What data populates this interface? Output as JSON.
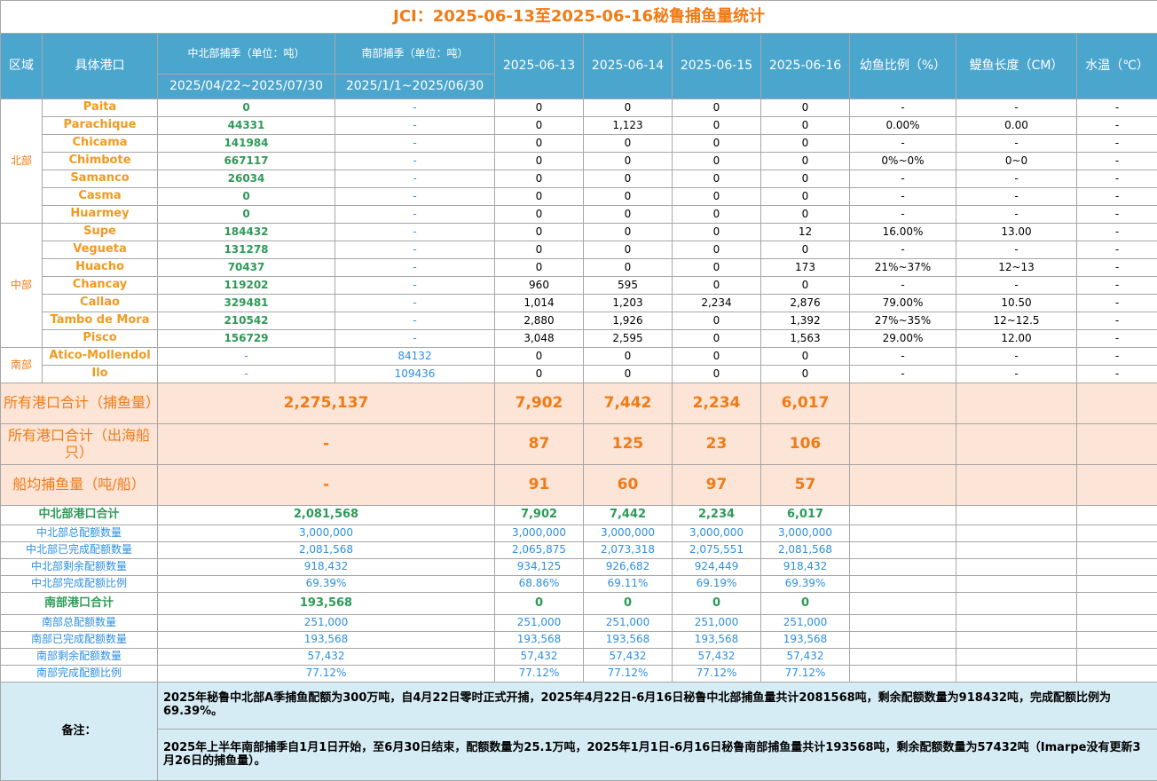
{
  "title": "JCI：2025-06-13至2025-06-16秘鲁捕鱼量统计",
  "header": {
    "region": "区域",
    "port": "具体港口",
    "north_season": "中北部捕季（单位：吨）",
    "north_period": "2025/04/22~2025/07/30",
    "south_season": "南部捕季（单位：吨）",
    "south_period": "2025/1/1~2025/06/30",
    "dates": [
      "2025-06-13",
      "2025-06-14",
      "2025-06-15",
      "2025-06-16"
    ],
    "juvenile": "幼鱼比例（%）",
    "length": "鳀鱼长度（CM）",
    "temp": "水温（℃）"
  },
  "regions": [
    {
      "name": "北部",
      "ports": [
        {
          "name": "Paita",
          "north": "0",
          "south": "-",
          "daily": [
            "0",
            "0",
            "0",
            "0"
          ],
          "juvenile": "-",
          "length": "-",
          "temp": "-"
        },
        {
          "name": "Parachique",
          "north": "44331",
          "south": "-",
          "daily": [
            "0",
            "1,123",
            "0",
            "0"
          ],
          "juvenile": "0.00%",
          "length": "0.00",
          "temp": "-"
        },
        {
          "name": "Chicama",
          "north": "141984",
          "south": "-",
          "daily": [
            "0",
            "0",
            "0",
            "0"
          ],
          "juvenile": "-",
          "length": "-",
          "temp": "-"
        },
        {
          "name": "Chimbote",
          "north": "667117",
          "south": "-",
          "daily": [
            "0",
            "0",
            "0",
            "0"
          ],
          "juvenile": "0%~0%",
          "length": "0~0",
          "temp": "-"
        },
        {
          "name": "Samanco",
          "north": "26034",
          "south": "-",
          "daily": [
            "0",
            "0",
            "0",
            "0"
          ],
          "juvenile": "-",
          "length": "-",
          "temp": "-"
        },
        {
          "name": "Casma",
          "north": "0",
          "south": "-",
          "daily": [
            "0",
            "0",
            "0",
            "0"
          ],
          "juvenile": "-",
          "length": "-",
          "temp": "-"
        },
        {
          "name": "Huarmey",
          "north": "0",
          "south": "-",
          "daily": [
            "0",
            "0",
            "0",
            "0"
          ],
          "juvenile": "-",
          "length": "-",
          "temp": "-"
        }
      ]
    },
    {
      "name": "中部",
      "ports": [
        {
          "name": "Supe",
          "north": "184432",
          "south": "-",
          "daily": [
            "0",
            "0",
            "0",
            "12"
          ],
          "juvenile": "16.00%",
          "length": "13.00",
          "temp": "-"
        },
        {
          "name": "Vegueta",
          "north": "131278",
          "south": "-",
          "daily": [
            "0",
            "0",
            "0",
            "0"
          ],
          "juvenile": "-",
          "length": "-",
          "temp": "-"
        },
        {
          "name": "Huacho",
          "north": "70437",
          "south": "-",
          "daily": [
            "0",
            "0",
            "0",
            "173"
          ],
          "juvenile": "21%~37%",
          "length": "12~13",
          "temp": "-"
        },
        {
          "name": "Chancay",
          "north": "119202",
          "south": "-",
          "daily": [
            "960",
            "595",
            "0",
            "0"
          ],
          "juvenile": "-",
          "length": "-",
          "temp": "-"
        },
        {
          "name": "Callao",
          "north": "329481",
          "south": "-",
          "daily": [
            "1,014",
            "1,203",
            "2,234",
            "2,876"
          ],
          "juvenile": "79.00%",
          "length": "10.50",
          "temp": "-"
        },
        {
          "name": "Tambo de Mora",
          "north": "210542",
          "south": "-",
          "daily": [
            "2,880",
            "1,926",
            "0",
            "1,392"
          ],
          "juvenile": "27%~35%",
          "length": "12~12.5",
          "temp": "-"
        },
        {
          "name": "Pisco",
          "north": "156729",
          "south": "-",
          "daily": [
            "3,048",
            "2,595",
            "0",
            "1,563"
          ],
          "juvenile": "29.00%",
          "length": "12.00",
          "temp": "-"
        }
      ]
    },
    {
      "name": "南部",
      "ports": [
        {
          "name": "Atico-Mollendol",
          "north": "-",
          "south": "84132",
          "daily": [
            "0",
            "0",
            "0",
            "0"
          ],
          "juvenile": "-",
          "length": "-",
          "temp": "-"
        },
        {
          "name": "Ilo",
          "north": "-",
          "south": "109436",
          "daily": [
            "0",
            "0",
            "0",
            "0"
          ],
          "juvenile": "-",
          "length": "-",
          "temp": "-"
        }
      ]
    }
  ],
  "totals": [
    {
      "label": "所有港口合计（捕鱼量）",
      "season": "2,275,137",
      "daily": [
        "7,902",
        "7,442",
        "2,234",
        "6,017"
      ]
    },
    {
      "label": "所有港口合计（出海船只）",
      "season": "-",
      "daily": [
        "87",
        "125",
        "23",
        "106"
      ]
    },
    {
      "label": "船均捕鱼量（吨/船）",
      "season": "-",
      "daily": [
        "91",
        "60",
        "97",
        "57"
      ]
    }
  ],
  "quota": [
    {
      "total": {
        "label": "中北部港口合计",
        "season": "2,081,568",
        "daily": [
          "7,902",
          "7,442",
          "2,234",
          "6,017"
        ]
      },
      "rows": [
        {
          "label": "中北部总配额数量",
          "season": "3,000,000",
          "daily": [
            "3,000,000",
            "3,000,000",
            "3,000,000",
            "3,000,000"
          ]
        },
        {
          "label": "中北部已完成配额数量",
          "season": "2,081,568",
          "daily": [
            "2,065,875",
            "2,073,318",
            "2,075,551",
            "2,081,568"
          ]
        },
        {
          "label": "中北部剩余配额数量",
          "season": "918,432",
          "daily": [
            "934,125",
            "926,682",
            "924,449",
            "918,432"
          ]
        },
        {
          "label": "中北部完成配额比例",
          "season": "69.39%",
          "daily": [
            "68.86%",
            "69.11%",
            "69.19%",
            "69.39%"
          ]
        }
      ]
    },
    {
      "total": {
        "label": "南部港口合计",
        "season": "193,568",
        "daily": [
          "0",
          "0",
          "0",
          "0"
        ]
      },
      "rows": [
        {
          "label": "南部总配额数量",
          "season": "251,000",
          "daily": [
            "251,000",
            "251,000",
            "251,000",
            "251,000"
          ]
        },
        {
          "label": "南部已完成配额数量",
          "season": "193,568",
          "daily": [
            "193,568",
            "193,568",
            "193,568",
            "193,568"
          ]
        },
        {
          "label": "南部剩余配额数量",
          "season": "57,432",
          "daily": [
            "57,432",
            "57,432",
            "57,432",
            "57,432"
          ]
        },
        {
          "label": "南部完成配额比例",
          "season": "77.12%",
          "daily": [
            "77.12%",
            "77.12%",
            "77.12%",
            "77.12%"
          ]
        }
      ]
    }
  ],
  "notes": {
    "label": "备注：",
    "items": [
      "2025年秘鲁中北部A季捕鱼配额为300万吨，自4月22日零时正式开捕，2025年4月22日-6月16日秘鲁中北部捕鱼量共计2081568吨，剩余配额数量为918432吨，完成配额比例为69.39%。",
      "2025年上半年南部捕季自1月1日开始，至6月30日结束，配额数量为25.1万吨，2025年1月1日-6月16日秘鲁南部捕鱼量共计193568吨，剩余配额数量为57432吨（Imarpe没有更新3月26日的捕鱼量）。"
    ]
  }
}
